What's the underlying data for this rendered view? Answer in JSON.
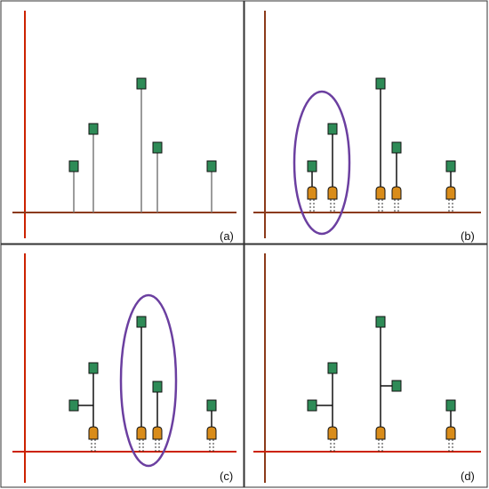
{
  "colors": {
    "axis_brown": "#8B3A1A",
    "axis_red": "#CC2200",
    "axis_glow": "#F6C8E8",
    "node_green": "#2E8B57",
    "node_green_light": "#5CB85C",
    "plug_orange": "#D98C1A",
    "ellipse_purple": "#6B3FA0",
    "stem_gray": "#7A7A7A",
    "stem_black": "#111111",
    "border": "#333333"
  },
  "panels": [
    {
      "id": "a",
      "label": "(a)"
    },
    {
      "id": "b",
      "label": "(b)"
    },
    {
      "id": "c",
      "label": "(c)"
    },
    {
      "id": "d",
      "label": "(d)"
    }
  ]
}
